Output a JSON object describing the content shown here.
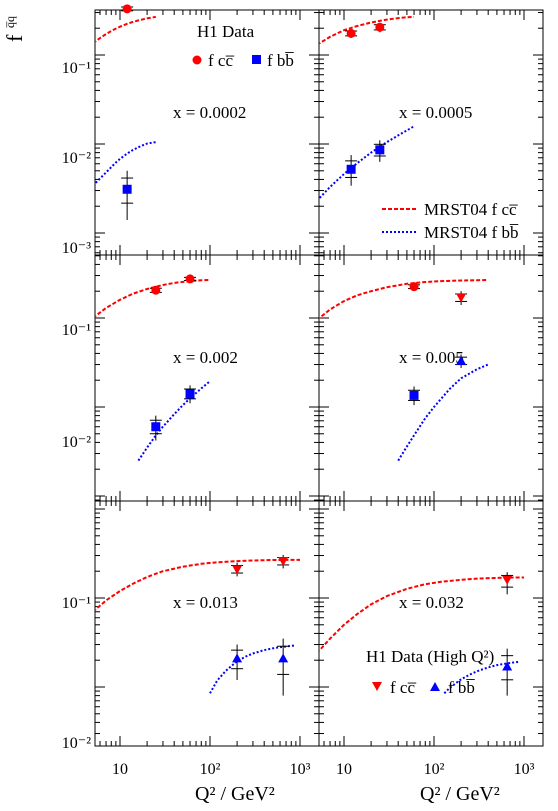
{
  "figure": {
    "y_axis_label": {
      "base": "f",
      "sup": "q̅q"
    },
    "x_axis_label": "Q² / GeV²",
    "x_tick_labels": [
      "10",
      "10²",
      "10³"
    ],
    "y_tick_labels": [
      "10⁻¹",
      "10⁻²",
      "10⁻³"
    ],
    "legend_h1": {
      "title": "H1 Data",
      "cc_label": "f cc̅",
      "bb_label": "f bb̅"
    },
    "legend_h1_highq2": {
      "title": "H1 Data (High Q²)",
      "cc_label": "f cc̅",
      "bb_label": "f bb̅"
    },
    "legend_mrst": {
      "cc_label": "MRST04 f cc̅",
      "bb_label": "MRST04 f bb̅"
    },
    "colors": {
      "cc": "#ff0000",
      "bb": "#0000ff",
      "axis": "#000000"
    }
  },
  "chart_data": {
    "type": "scatter",
    "x_scale": "log",
    "y_scale": "log",
    "xlabel": "Q² / GeV²",
    "ylabel": "f q̅q",
    "xlim": [
      5,
      1300
    ],
    "ylim": [
      0.001,
      0.5
    ],
    "panels": [
      {
        "label": "x = 0.0002",
        "cc": [
          {
            "x": 12,
            "y": 0.33,
            "err_lo": 0.3,
            "err_hi": 0.36,
            "marker": "circle"
          }
        ],
        "bb": [
          {
            "x": 12,
            "y": 0.0031,
            "err_lo": 0.0014,
            "err_hi": 0.005,
            "marker": "square"
          }
        ],
        "mrst_cc": {
          "x": [
            5,
            6,
            7,
            8,
            9,
            10,
            12,
            14,
            16,
            18,
            20,
            25
          ],
          "y": [
            0.135,
            0.155,
            0.172,
            0.186,
            0.198,
            0.208,
            0.224,
            0.236,
            0.245,
            0.252,
            0.258,
            0.268
          ]
        },
        "mrst_bb": {
          "x": [
            5,
            6,
            7,
            8,
            9,
            10,
            12,
            14,
            16,
            18,
            20,
            25
          ],
          "y": [
            0.0034,
            0.0041,
            0.0048,
            0.0055,
            0.0062,
            0.0068,
            0.0078,
            0.0086,
            0.0092,
            0.0097,
            0.0101,
            0.0105
          ]
        }
      },
      {
        "label": "x = 0.0005",
        "cc": [
          {
            "x": 12,
            "y": 0.175,
            "err_lo": 0.155,
            "err_hi": 0.195,
            "marker": "circle"
          },
          {
            "x": 25,
            "y": 0.205,
            "err_lo": 0.18,
            "err_hi": 0.23,
            "marker": "circle"
          }
        ],
        "bb": [
          {
            "x": 12,
            "y": 0.0052,
            "err_lo": 0.0034,
            "err_hi": 0.0075,
            "marker": "square"
          },
          {
            "x": 25,
            "y": 0.0086,
            "err_lo": 0.0063,
            "err_hi": 0.011,
            "marker": "square"
          }
        ],
        "mrst_cc": {
          "x": [
            5,
            7,
            10,
            14,
            20,
            30,
            40,
            50,
            60
          ],
          "y": [
            0.13,
            0.16,
            0.19,
            0.212,
            0.232,
            0.25,
            0.26,
            0.265,
            0.268
          ]
        },
        "mrst_bb": {
          "x": [
            5,
            7,
            10,
            14,
            20,
            30,
            40,
            50,
            60
          ],
          "y": [
            0.0023,
            0.0033,
            0.0046,
            0.0061,
            0.008,
            0.0105,
            0.0125,
            0.0142,
            0.0158
          ]
        }
      },
      {
        "label": "x = 0.002",
        "cc": [
          {
            "x": 25,
            "y": 0.205,
            "err_lo": 0.185,
            "err_hi": 0.225,
            "marker": "circle"
          },
          {
            "x": 60,
            "y": 0.275,
            "err_lo": 0.255,
            "err_hi": 0.295,
            "marker": "circle"
          }
        ],
        "bb": [
          {
            "x": 25,
            "y": 0.006,
            "err_lo": 0.0042,
            "err_hi": 0.008,
            "marker": "square"
          },
          {
            "x": 60,
            "y": 0.014,
            "err_lo": 0.011,
            "err_hi": 0.0175,
            "marker": "square"
          }
        ],
        "mrst_cc": {
          "x": [
            5,
            7,
            10,
            14,
            20,
            30,
            40,
            60,
            80,
            100
          ],
          "y": [
            0.1,
            0.13,
            0.16,
            0.188,
            0.212,
            0.235,
            0.248,
            0.26,
            0.265,
            0.268
          ]
        },
        "mrst_bb": {
          "x": [
            16,
            20,
            25,
            30,
            40,
            50,
            60,
            80,
            100
          ],
          "y": [
            0.0025,
            0.0035,
            0.0048,
            0.006,
            0.0083,
            0.0105,
            0.0125,
            0.0162,
            0.0195
          ]
        }
      },
      {
        "label": "x = 0.005",
        "cc": [
          {
            "x": 60,
            "y": 0.225,
            "err_lo": 0.205,
            "err_hi": 0.245,
            "marker": "circle"
          },
          {
            "x": 200,
            "y": 0.17,
            "err_lo": 0.14,
            "err_hi": 0.2,
            "marker": "triangle-down"
          }
        ],
        "bb": [
          {
            "x": 60,
            "y": 0.0135,
            "err_lo": 0.0105,
            "err_hi": 0.017,
            "marker": "square"
          },
          {
            "x": 200,
            "y": 0.033,
            "err_lo": 0.0275,
            "err_hi": 0.039,
            "marker": "triangle-up"
          }
        ],
        "mrst_cc": {
          "x": [
            5,
            7,
            10,
            14,
            20,
            30,
            50,
            80,
            120,
            200,
            300,
            400
          ],
          "y": [
            0.095,
            0.125,
            0.155,
            0.18,
            0.2,
            0.222,
            0.242,
            0.254,
            0.26,
            0.264,
            0.266,
            0.267
          ]
        },
        "mrst_bb": {
          "x": [
            40,
            50,
            60,
            80,
            100,
            150,
            200,
            300,
            400
          ],
          "y": [
            0.0025,
            0.0036,
            0.0048,
            0.0075,
            0.01,
            0.016,
            0.021,
            0.0265,
            0.03
          ]
        }
      },
      {
        "label": "x = 0.013",
        "cc": [
          {
            "x": 200,
            "y": 0.21,
            "err_lo": 0.175,
            "err_hi": 0.25,
            "marker": "triangle-down"
          },
          {
            "x": 650,
            "y": 0.26,
            "err_lo": 0.215,
            "err_hi": 0.305,
            "marker": "triangle-down"
          }
        ],
        "bb": [
          {
            "x": 200,
            "y": 0.021,
            "err_lo": 0.012,
            "err_hi": 0.03,
            "marker": "triangle-up"
          },
          {
            "x": 650,
            "y": 0.021,
            "err_lo": 0.008,
            "err_hi": 0.035,
            "marker": "triangle-up"
          }
        ],
        "mrst_cc": {
          "x": [
            5,
            7,
            10,
            14,
            20,
            30,
            50,
            80,
            120,
            200,
            300,
            500,
            800,
            1000
          ],
          "y": [
            0.07,
            0.094,
            0.12,
            0.145,
            0.172,
            0.2,
            0.225,
            0.242,
            0.252,
            0.26,
            0.264,
            0.267,
            0.268,
            0.268
          ]
        },
        "mrst_bb": {
          "x": [
            100,
            120,
            150,
            200,
            250,
            300,
            400,
            500,
            600,
            800,
            900
          ],
          "y": [
            0.0085,
            0.0118,
            0.0152,
            0.0195,
            0.022,
            0.0238,
            0.026,
            0.0272,
            0.028,
            0.029,
            0.0293
          ]
        }
      },
      {
        "label": "x = 0.032",
        "cc": [
          {
            "x": 650,
            "y": 0.16,
            "err_lo": 0.11,
            "err_hi": 0.195,
            "marker": "triangle-down"
          }
        ],
        "bb": [
          {
            "x": 650,
            "y": 0.017,
            "err_lo": 0.008,
            "err_hi": 0.027,
            "marker": "triangle-up"
          }
        ],
        "mrst_cc": {
          "x": [
            5,
            7,
            10,
            14,
            20,
            30,
            50,
            80,
            120,
            200,
            300,
            500,
            800,
            1000
          ],
          "y": [
            0.024,
            0.035,
            0.05,
            0.066,
            0.085,
            0.105,
            0.127,
            0.143,
            0.152,
            0.16,
            0.165,
            0.168,
            0.17,
            0.17
          ]
        },
        "mrst_bb": {
          "x": [
            130,
            150,
            200,
            250,
            300,
            400,
            500,
            600,
            800,
            900
          ],
          "y": [
            0.0085,
            0.0098,
            0.0122,
            0.0138,
            0.015,
            0.0166,
            0.0176,
            0.0182,
            0.019,
            0.0192
          ]
        }
      }
    ]
  }
}
